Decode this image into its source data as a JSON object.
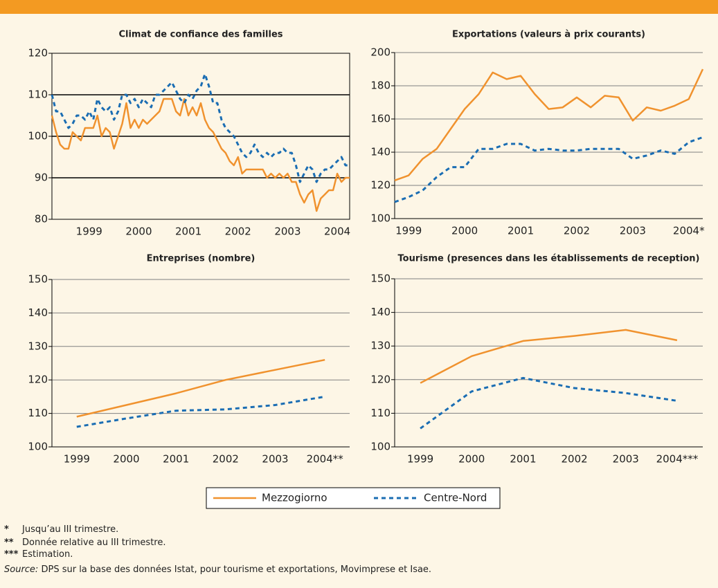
{
  "chart_data": [
    {
      "type": "line",
      "title": "Climat de confiance des familles",
      "categories": [
        null,
        null,
        null,
        null,
        null,
        null,
        null,
        null,
        null,
        "1999",
        null,
        null,
        null,
        null,
        null,
        null,
        null,
        null,
        null,
        null,
        null,
        "2000",
        null,
        null,
        null,
        null,
        null,
        null,
        null,
        null,
        null,
        null,
        null,
        "2001",
        null,
        null,
        null,
        null,
        null,
        null,
        null,
        null,
        null,
        null,
        null,
        "2002",
        null,
        null,
        null,
        null,
        null,
        null,
        null,
        null,
        null,
        null,
        null,
        "2003",
        null,
        null,
        null,
        null,
        null,
        null,
        null,
        null,
        null,
        null,
        null,
        "2004",
        null,
        null,
        null
      ],
      "series": [
        {
          "name": "Mezzogiorno",
          "color": "#f0922e",
          "linestyle": "solid",
          "values": [
            105,
            101,
            98,
            97,
            97,
            101,
            100,
            99,
            102,
            102,
            102,
            105,
            100,
            102,
            101,
            97,
            100,
            103,
            108,
            102,
            104,
            102,
            104,
            103,
            104,
            105,
            106,
            109,
            109,
            109,
            106,
            105,
            109,
            105,
            107,
            105,
            108,
            104,
            102,
            101,
            99,
            97,
            96,
            94,
            93,
            95,
            91,
            92,
            92,
            92,
            92,
            92,
            90,
            91,
            90,
            91,
            90,
            91,
            89,
            89,
            86,
            84,
            86,
            87,
            82,
            85,
            86,
            87,
            87,
            91,
            89,
            90,
            90
          ]
        },
        {
          "name": "Centre-Nord",
          "color": "#1a6db3",
          "linestyle": "dashed",
          "values": [
            110,
            106,
            106,
            104,
            102,
            103,
            105,
            105,
            104,
            106,
            104,
            109,
            107,
            106,
            107,
            104,
            106,
            110,
            110,
            108,
            109,
            107,
            109,
            108,
            107,
            110,
            110,
            111,
            112,
            113,
            111,
            109,
            108,
            110,
            109,
            111,
            112,
            115,
            112,
            108,
            108,
            104,
            102,
            101,
            100,
            98,
            96,
            95,
            96,
            98,
            96,
            95,
            96,
            95,
            96,
            96,
            97,
            96,
            96,
            93,
            89,
            91,
            93,
            92,
            89,
            91,
            92,
            92,
            93,
            94,
            95,
            93,
            93
          ]
        }
      ],
      "ylim": [
        80,
        120
      ],
      "yticks": [
        80,
        90,
        100,
        110,
        120
      ],
      "grid": true,
      "grid_color": "#000000",
      "frame": true
    },
    {
      "type": "line",
      "title": "Exportations (valeurs à prix courants)",
      "categories": [
        null,
        "1999",
        null,
        null,
        null,
        "2000",
        null,
        null,
        null,
        "2001",
        null,
        null,
        null,
        "2002",
        null,
        null,
        null,
        "2003",
        null,
        null,
        null,
        "2004*",
        null
      ],
      "series": [
        {
          "name": "Mezzogiorno",
          "color": "#f0922e",
          "linestyle": "solid",
          "values": [
            123,
            126,
            136,
            142,
            154,
            166,
            175,
            188,
            184,
            186,
            175,
            166,
            167,
            173,
            167,
            174,
            173,
            159,
            167,
            165,
            168,
            172,
            190
          ]
        },
        {
          "name": "Centre-Nord",
          "color": "#1a6db3",
          "linestyle": "dashed",
          "values": [
            110,
            113,
            117,
            125,
            131,
            131,
            142,
            142,
            145,
            145,
            141,
            142,
            141,
            141,
            142,
            142,
            142,
            136,
            138,
            141,
            139,
            146,
            149
          ]
        }
      ],
      "ylim": [
        100,
        200
      ],
      "yticks": [
        100,
        120,
        140,
        160,
        180,
        200
      ],
      "grid": true,
      "grid_color": "#808080",
      "frame": false
    },
    {
      "type": "line",
      "title": "Entreprises (nombre)",
      "categories": [
        "1999",
        "2000",
        "2001",
        "2002",
        "2003",
        "2004**"
      ],
      "series": [
        {
          "name": "Mezzogiorno",
          "color": "#f0922e",
          "linestyle": "solid",
          "values": [
            109,
            112.5,
            116,
            120,
            123,
            126
          ]
        },
        {
          "name": "Centre-Nord",
          "color": "#1a6db3",
          "linestyle": "dashed",
          "values": [
            106,
            108.5,
            110.8,
            111.2,
            112.5,
            115
          ]
        }
      ],
      "ylim": [
        100,
        150
      ],
      "yticks": [
        100,
        110,
        120,
        130,
        140,
        150
      ],
      "grid": true,
      "grid_color": "#808080",
      "frame": false
    },
    {
      "type": "line",
      "title": "Tourisme (presences dans les établissements de reception)",
      "categories": [
        "1999",
        "2000",
        "2001",
        "2002",
        "2003",
        "2004***"
      ],
      "series": [
        {
          "name": "Mezzogiorno",
          "color": "#f0922e",
          "linestyle": "solid",
          "values": [
            119,
            127,
            131.5,
            133,
            134.8,
            131.7
          ]
        },
        {
          "name": "Centre-Nord",
          "color": "#1a6db3",
          "linestyle": "dashed",
          "values": [
            105.5,
            116.5,
            120.5,
            117.5,
            116,
            113.7
          ]
        }
      ],
      "ylim": [
        100,
        150
      ],
      "yticks": [
        100,
        110,
        120,
        130,
        140,
        150
      ],
      "grid": true,
      "grid_color": "#808080",
      "frame": false
    }
  ],
  "notes": [
    {
      "marker": "*",
      "text": "Jusqu’au III trimestre."
    },
    {
      "marker": "**",
      "text": "Donnée relative au III trimestre."
    },
    {
      "marker": "***",
      "text": "Estimation."
    }
  ],
  "source": {
    "label": "Source:",
    "text": "DPS sur la base des données Istat, pour tourisme et exportations, Movimprese et Isae."
  }
}
